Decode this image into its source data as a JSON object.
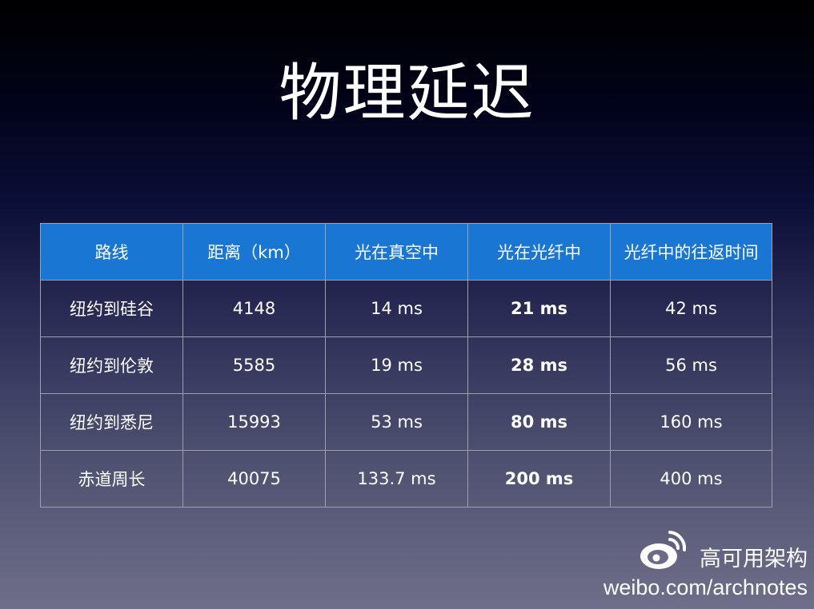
{
  "slide": {
    "title": "物理延迟"
  },
  "table": {
    "headers": [
      "路线",
      "距离（km）",
      "光在真空中",
      "光在光纤中",
      "光纤中的往返时间"
    ],
    "rows": [
      [
        "纽约到硅谷",
        "4148",
        "14 ms",
        "21 ms",
        "42 ms"
      ],
      [
        "纽约到伦敦",
        "5585",
        "19 ms",
        "28 ms",
        "56 ms"
      ],
      [
        "纽约到悉尼",
        "15993",
        "53 ms",
        "80 ms",
        "160 ms"
      ],
      [
        "赤道周长",
        "40075",
        "133.7 ms",
        "200 ms",
        "400 ms"
      ]
    ],
    "header_color": "#1976d2",
    "border_color": "#9ea0b0",
    "bold_column_index": 3
  },
  "watermark": {
    "logo_icon": "weibo-logo-icon",
    "name": "高可用架构",
    "url": "weibo.com/archnotes"
  }
}
